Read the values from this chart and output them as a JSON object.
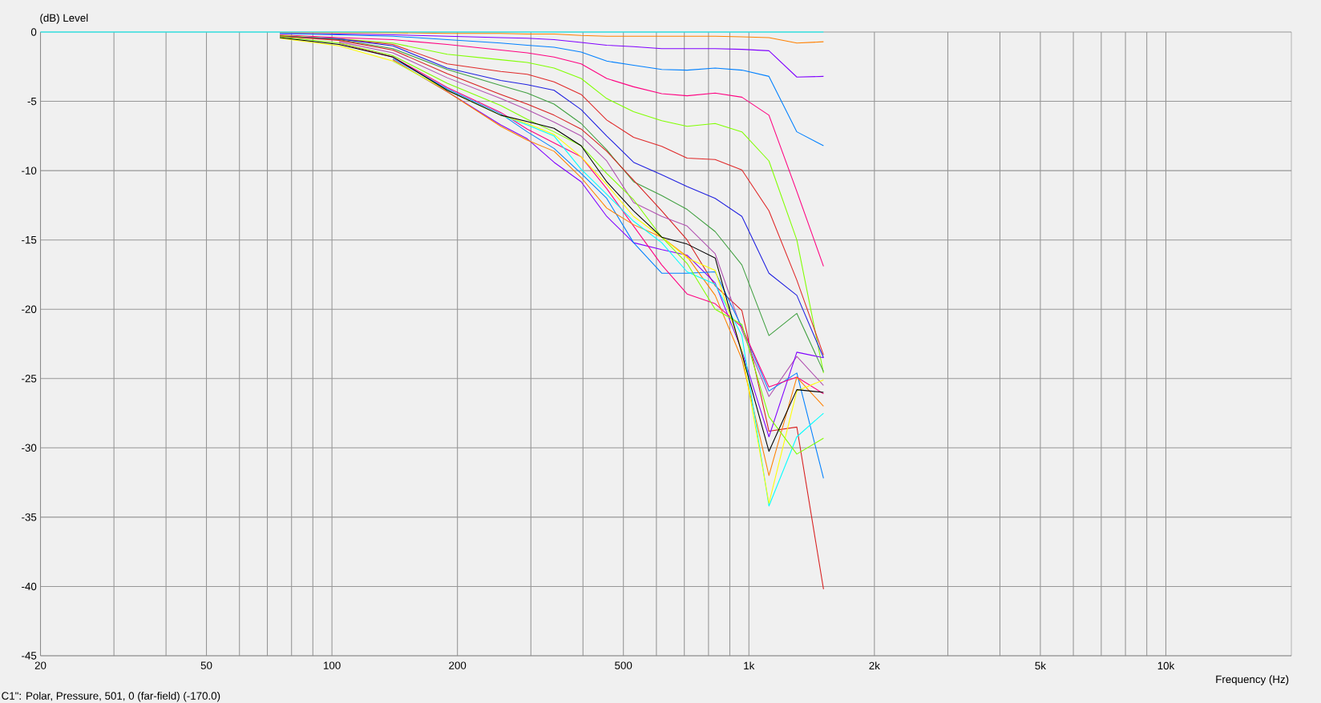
{
  "chart_data": {
    "type": "line",
    "ylabel": "(dB)  Level",
    "xlabel": "Frequency  (Hz)",
    "annotations": [
      "C1\": Polar, Pressure, 501, 0 (far-field) (-170.0)"
    ],
    "log": "x",
    "grid": true,
    "xlim": [
      20,
      20000
    ],
    "ylim": [
      -45,
      0
    ],
    "xticks": [
      20,
      {
        "value": 30,
        "label": null
      },
      {
        "value": 40,
        "label": null
      },
      50,
      {
        "value": 60,
        "label": null
      },
      {
        "value": 70,
        "label": null
      },
      {
        "value": 80,
        "label": null
      },
      {
        "value": 90,
        "label": null
      },
      100,
      200,
      {
        "value": 300,
        "label": null
      },
      {
        "value": 400,
        "label": null
      },
      500,
      {
        "value": 600,
        "label": null
      },
      {
        "value": 700,
        "label": null
      },
      {
        "value": 800,
        "label": null
      },
      {
        "value": 900,
        "label": null
      },
      {
        "value": 1000,
        "label": "1k"
      },
      {
        "value": 2000,
        "label": "2k"
      },
      {
        "value": 3000,
        "label": null
      },
      {
        "value": 4000,
        "label": null
      },
      {
        "value": 5000,
        "label": "5k"
      },
      {
        "value": 6000,
        "label": null
      },
      {
        "value": 7000,
        "label": null
      },
      {
        "value": 8000,
        "label": null
      },
      {
        "value": 9000,
        "label": null
      },
      {
        "value": 10000,
        "label": "10k"
      }
    ],
    "yticks": [
      0,
      -5,
      -10,
      -15,
      -20,
      -25,
      -30,
      -35,
      -40,
      -45
    ],
    "x": [
      20,
      50,
      75,
      104,
      140,
      189,
      254,
      294,
      341,
      396,
      456,
      529,
      618,
      711,
      830,
      962,
      1117,
      1303,
      1510
    ],
    "series": [
      {
        "color": "#ff8000",
        "values": [
          null,
          null,
          -0.05,
          -0.05,
          -0.05,
          -0.1,
          -0.1,
          -0.15,
          -0.15,
          -0.25,
          -0.3,
          -0.3,
          -0.3,
          -0.3,
          -0.3,
          -0.35,
          -0.4,
          -0.8,
          -0.7
        ]
      },
      {
        "color": "#8000ff",
        "values": [
          null,
          null,
          -0.1,
          -0.15,
          -0.2,
          -0.3,
          -0.4,
          -0.45,
          -0.55,
          -0.75,
          -0.95,
          -1.05,
          -1.2,
          -1.2,
          -1.2,
          -1.25,
          -1.35,
          -3.25,
          -3.2
        ]
      },
      {
        "color": "#0080ff",
        "values": [
          null,
          null,
          -0.1,
          -0.2,
          -0.3,
          -0.55,
          -0.8,
          -0.95,
          -1.1,
          -1.45,
          -2.1,
          -2.4,
          -2.7,
          -2.75,
          -2.6,
          -2.75,
          -3.2,
          -7.2,
          -8.2
        ]
      },
      {
        "color": "#ff0080",
        "values": [
          null,
          null,
          -0.2,
          -0.4,
          -0.55,
          -0.9,
          -1.3,
          -1.5,
          -1.8,
          -2.3,
          -3.35,
          -3.95,
          -4.45,
          -4.6,
          -4.4,
          -4.7,
          -6.0,
          -11.5,
          -16.9
        ]
      },
      {
        "color": "#80ff00",
        "values": [
          null,
          null,
          -0.25,
          -0.5,
          -0.8,
          -1.6,
          -2.0,
          -2.2,
          -2.6,
          -3.35,
          -4.8,
          -5.75,
          -6.4,
          -6.8,
          -6.6,
          -7.2,
          -9.3,
          -15.0,
          -24.6
        ]
      },
      {
        "color": "#e02828",
        "values": [
          null,
          null,
          -0.3,
          -0.5,
          -0.9,
          -2.3,
          -2.85,
          -3.05,
          -3.6,
          -4.5,
          -6.35,
          -7.6,
          -8.25,
          -9.1,
          -9.2,
          -9.95,
          -12.9,
          -17.9,
          -23.3
        ]
      },
      {
        "color": "#2020e0",
        "values": [
          null,
          null,
          -0.3,
          -0.5,
          -1.0,
          -2.6,
          -3.5,
          -3.8,
          -4.2,
          -5.6,
          -7.5,
          -9.4,
          -10.3,
          -11.15,
          -12.0,
          -13.3,
          -17.4,
          -19.0,
          -23.5
        ]
      },
      {
        "color": "#40a040",
        "values": [
          null,
          null,
          -0.3,
          -0.55,
          -1.2,
          -2.7,
          -3.85,
          -4.4,
          -5.2,
          -6.6,
          -8.5,
          -10.8,
          -11.8,
          -12.8,
          -14.4,
          -16.8,
          -21.9,
          -20.3,
          -24.5
        ]
      },
      {
        "color": "#d82020",
        "values": [
          null,
          null,
          -0.3,
          -0.6,
          -1.3,
          -3.0,
          -4.5,
          -5.2,
          -6.0,
          -7.0,
          -8.6,
          -10.7,
          -12.9,
          -15.0,
          -18.3,
          -20.1,
          -28.8,
          -28.5,
          -40.2
        ]
      },
      {
        "color": "#b050b0",
        "values": [
          null,
          null,
          null,
          -0.7,
          -1.5,
          -3.3,
          -4.8,
          -5.6,
          -6.5,
          -7.5,
          -9.3,
          -12.3,
          -13.3,
          -14.0,
          -16.0,
          -21.5,
          -26.3,
          -23.4,
          -25.5
        ]
      },
      {
        "color": "#8000ff",
        "values": [
          null,
          null,
          null,
          null,
          -2.0,
          -4.3,
          -6.7,
          -7.7,
          -9.4,
          -10.8,
          -13.3,
          -15.2,
          -15.7,
          -16.1,
          -18.1,
          -23.0,
          -29.2,
          -23.1,
          -23.5
        ]
      },
      {
        "color": "#0080ff",
        "values": [
          null,
          null,
          null,
          null,
          -1.9,
          -4.1,
          -5.9,
          -7.2,
          -8.4,
          -10.2,
          -12.0,
          -15.2,
          -17.4,
          -17.4,
          -17.3,
          -21.3,
          -25.9,
          -24.6,
          -32.2
        ]
      },
      {
        "color": "#ff0080",
        "values": [
          null,
          null,
          null,
          -0.8,
          -1.8,
          -4.0,
          -5.8,
          -7.0,
          -8.0,
          -9.0,
          -11.3,
          -14.0,
          -16.8,
          -18.9,
          -19.6,
          -21.3,
          -25.6,
          -24.9,
          -26.1
        ]
      },
      {
        "color": "#ff8000",
        "values": [
          null,
          null,
          null,
          null,
          -2.0,
          -4.3,
          -6.8,
          -7.8,
          -8.6,
          -10.5,
          -12.7,
          -13.9,
          -14.8,
          -16.2,
          -19.0,
          -23.6,
          -32.0,
          -24.9,
          -27.0
        ]
      },
      {
        "color": "#00ffff",
        "values": [
          null,
          null,
          null,
          null,
          -2.1,
          -4.2,
          -6.0,
          -6.7,
          -7.5,
          -9.9,
          -11.7,
          -13.65,
          -15.2,
          -17.3,
          -18.2,
          -21.9,
          -34.2,
          -29.2,
          -27.5
        ]
      },
      {
        "color": "#ffff00",
        "values": [
          null,
          null,
          -0.45,
          -1.0,
          -2.1,
          -4.2,
          -6.0,
          -6.6,
          -7.4,
          -9.0,
          -11.0,
          -13.3,
          -14.8,
          -16.3,
          -17.2,
          -23.0,
          -34.0,
          -25.9,
          -25.1
        ]
      },
      {
        "color": "#80ff00",
        "values": [
          null,
          null,
          -0.35,
          -0.8,
          -1.7,
          -3.7,
          -5.3,
          -6.3,
          -7.2,
          -8.2,
          -10.2,
          -12.1,
          -14.8,
          -16.7,
          -20.0,
          -21.1,
          -27.75,
          -30.45,
          -29.3
        ]
      },
      {
        "color": "#000000",
        "values": [
          null,
          null,
          -0.4,
          -0.9,
          -1.8,
          -4.2,
          -6.0,
          -6.45,
          -6.95,
          -8.2,
          -10.8,
          -12.9,
          -14.8,
          -15.3,
          -16.3,
          -23.2,
          -30.25,
          -25.8,
          -26.0
        ]
      },
      {
        "color": "#00ffff",
        "values": [
          0,
          0,
          0,
          0,
          0,
          0,
          0,
          0,
          0,
          0,
          0,
          0,
          0,
          0,
          0,
          0,
          0,
          0,
          0
        ]
      }
    ]
  }
}
